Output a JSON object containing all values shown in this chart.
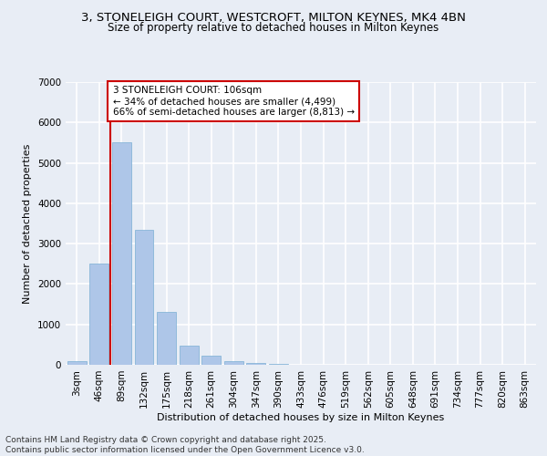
{
  "title1": "3, STONELEIGH COURT, WESTCROFT, MILTON KEYNES, MK4 4BN",
  "title2": "Size of property relative to detached houses in Milton Keynes",
  "xlabel": "Distribution of detached houses by size in Milton Keynes",
  "ylabel": "Number of detached properties",
  "categories": [
    "3sqm",
    "46sqm",
    "89sqm",
    "132sqm",
    "175sqm",
    "218sqm",
    "261sqm",
    "304sqm",
    "347sqm",
    "390sqm",
    "433sqm",
    "476sqm",
    "519sqm",
    "562sqm",
    "605sqm",
    "648sqm",
    "691sqm",
    "734sqm",
    "777sqm",
    "820sqm",
    "863sqm"
  ],
  "values": [
    100,
    2500,
    5500,
    3350,
    1300,
    480,
    220,
    100,
    50,
    30,
    10,
    5,
    2,
    1,
    0,
    0,
    0,
    0,
    0,
    0,
    0
  ],
  "bar_color": "#aec6e8",
  "bar_edge_color": "#7aafd4",
  "background_color": "#e8edf5",
  "grid_color": "#ffffff",
  "vline_x_index": 2,
  "vline_color": "#cc0000",
  "annotation_text": "3 STONELEIGH COURT: 106sqm\n← 34% of detached houses are smaller (4,499)\n66% of semi-detached houses are larger (8,813) →",
  "annotation_box_color": "#ffffff",
  "annotation_box_edge_color": "#cc0000",
  "footer_text": "Contains HM Land Registry data © Crown copyright and database right 2025.\nContains public sector information licensed under the Open Government Licence v3.0.",
  "ylim": [
    0,
    7000
  ],
  "yticks": [
    0,
    1000,
    2000,
    3000,
    4000,
    5000,
    6000,
    7000
  ],
  "title1_fontsize": 9.5,
  "title2_fontsize": 8.5,
  "xlabel_fontsize": 8,
  "ylabel_fontsize": 8,
  "tick_fontsize": 7.5,
  "annotation_fontsize": 7.5,
  "footer_fontsize": 6.5
}
